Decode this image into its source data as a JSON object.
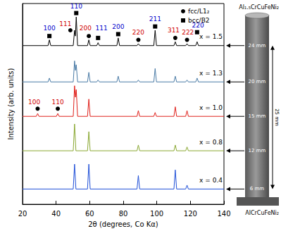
{
  "chart_data": {
    "type": "line",
    "x_label": "2θ (degrees, Co Kα)",
    "y_label": "Intensity (arb. units)",
    "xlim": [
      20,
      140
    ],
    "xticks": [
      20,
      40,
      60,
      80,
      100,
      120,
      140
    ],
    "ylim": [
      0,
      105
    ],
    "tick_labels": "x",
    "grid": false,
    "legend": "upper right",
    "phases": [
      {
        "name": "fcc/L1₂",
        "marker": "circle",
        "color": "#d00000"
      },
      {
        "name": "bcc/B2",
        "marker": "square",
        "color": "#0000cc"
      }
    ],
    "series": [
      {
        "name": "x = 1.5",
        "color": "#000000",
        "x": [
          20,
          35.2,
          36,
          36.8,
          50.2,
          51,
          51.5,
          52,
          52.8,
          58.7,
          59.5,
          60.3,
          64.2,
          65,
          65.8,
          76.2,
          77,
          77.8,
          88.2,
          89,
          89.8,
          98.2,
          99,
          99.8,
          110.2,
          111,
          111.8,
          117.2,
          118,
          118.8,
          123.2,
          124,
          124.8,
          140
        ],
        "values": [
          83,
          83,
          86,
          83,
          83,
          91,
          88,
          98,
          83,
          83,
          86,
          83,
          83,
          84.5,
          83,
          83,
          87,
          83,
          83,
          84,
          83,
          83,
          91,
          83,
          83,
          85,
          83,
          83,
          84,
          83,
          83,
          85,
          83,
          83
        ],
        "peaks": [
          {
            "label": "100",
            "phase": "bcc/B2",
            "marker_at": [
              36,
              88
            ],
            "label_at": [
              36,
              92
            ]
          },
          {
            "label": "111",
            "phase": "fcc/L1₂",
            "marker_at": [
              48.5,
              91
            ],
            "label_at": [
              45.5,
              94.5
            ]
          },
          {
            "label": "110",
            "phase": "bcc/B2",
            "marker_at": [
              52,
              100
            ],
            "label_at": [
              52,
              103.5
            ]
          },
          {
            "label": "200",
            "phase": "fcc/L1₂",
            "marker_at": [
              59.5,
              88
            ],
            "label_at": [
              57.5,
              92
            ]
          },
          {
            "label": "111",
            "phase": "bcc/B2",
            "marker_at": [
              65,
              87
            ],
            "label_at": [
              67,
              92
            ]
          },
          {
            "label": "200",
            "phase": "bcc/B2",
            "marker_at": [
              77,
              89
            ],
            "label_at": [
              77,
              93
            ]
          },
          {
            "label": "220",
            "phase": "fcc/L1₂",
            "marker_at": [
              89,
              86
            ],
            "label_at": [
              89,
              90
            ]
          },
          {
            "label": "211",
            "phase": "bcc/B2",
            "marker_at": [
              99,
              93
            ],
            "label_at": [
              99,
              97
            ]
          },
          {
            "label": "311",
            "phase": "fcc/L1₂",
            "marker_at": [
              111,
              87
            ],
            "label_at": [
              110,
              91
            ]
          },
          {
            "label": "222",
            "phase": "fcc/L1₂",
            "marker_at": [
              118,
              86
            ],
            "label_at": [
              118.5,
              90
            ]
          },
          {
            "label": "220",
            "phase": "bcc/B2",
            "marker_at": [
              124,
              90
            ],
            "label_at": [
              124.5,
              93.5
            ]
          }
        ]
      },
      {
        "name": "x = 1.3",
        "color": "#4a7ba6",
        "x": [
          20,
          35.2,
          36,
          36.8,
          50.2,
          51,
          51.5,
          52,
          52.8,
          58.7,
          59.5,
          60.3,
          64.2,
          65,
          65.8,
          76.2,
          77,
          77.8,
          88.2,
          89,
          89.8,
          98.2,
          99,
          99.8,
          110.2,
          111,
          111.8,
          117.2,
          118,
          118.8,
          123.2,
          124,
          124.8,
          140
        ],
        "values": [
          64,
          64,
          66,
          64,
          64,
          75,
          70,
          73,
          64,
          64,
          69,
          64,
          64,
          65,
          64,
          64,
          67,
          64,
          64,
          65,
          64,
          64,
          71,
          64,
          64,
          67,
          64,
          64,
          65,
          64,
          64,
          66,
          64,
          64
        ],
        "peaks": []
      },
      {
        "name": "x = 1.0",
        "color": "#e0201b",
        "x": [
          20,
          28.2,
          29,
          29.8,
          40.2,
          41,
          41.8,
          50.2,
          51,
          51.5,
          52,
          52.8,
          58.7,
          59.5,
          60.3,
          88.2,
          89,
          89.8,
          98.2,
          99,
          99.8,
          110.2,
          111,
          111.8,
          117.2,
          118,
          118.8,
          140
        ],
        "values": [
          46,
          46,
          47.5,
          46,
          46,
          47.5,
          46,
          46,
          62,
          56,
          60,
          46,
          46,
          55,
          46,
          46,
          49,
          46,
          46,
          48,
          46,
          46,
          51,
          46,
          46,
          49,
          46,
          46
        ],
        "peaks": [
          {
            "label": "100",
            "phase": "fcc/L1₂",
            "marker_at": [
              29,
              50
            ],
            "label_at": [
              27,
              53.5
            ]
          },
          {
            "label": "110",
            "phase": "fcc/L1₂",
            "marker_at": [
              41,
              50
            ],
            "label_at": [
              41,
              53.5
            ]
          }
        ]
      },
      {
        "name": "x = 0.8",
        "color": "#8aa832",
        "x": [
          20,
          50.2,
          51,
          51.8,
          58.7,
          59.5,
          60.3,
          88.2,
          89,
          89.8,
          110.2,
          111,
          111.8,
          117.2,
          118,
          118.8,
          140
        ],
        "values": [
          28,
          28,
          42,
          28,
          28,
          38,
          28,
          28,
          31,
          28,
          28,
          31,
          28,
          28,
          30,
          28,
          28
        ],
        "peaks": []
      },
      {
        "name": "x = 0.4",
        "color": "#1f4fd8",
        "x": [
          20,
          50.2,
          51,
          51.8,
          58.7,
          59.5,
          60.3,
          88.2,
          89,
          89.8,
          110.2,
          111,
          111.8,
          117.2,
          118,
          118.8,
          140
        ],
        "values": [
          8,
          8,
          21,
          8,
          8,
          21,
          8,
          8,
          15,
          8,
          8,
          18,
          8,
          8,
          10,
          8,
          8
        ],
        "peaks": []
      }
    ]
  },
  "diagram": {
    "top_label": "Al₁.₅CrCuFeNi₂",
    "bottom_label": "AlCrCuFeNi₂",
    "length_label": "25 mm",
    "heights": [
      "24 mm",
      "20 mm",
      "15 mm",
      "12 mm",
      "6 mm"
    ]
  }
}
